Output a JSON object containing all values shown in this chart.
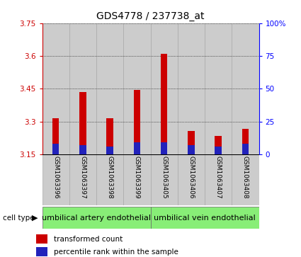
{
  "title": "GDS4778 / 237738_at",
  "samples": [
    "GSM1063396",
    "GSM1063397",
    "GSM1063398",
    "GSM1063399",
    "GSM1063405",
    "GSM1063406",
    "GSM1063407",
    "GSM1063408"
  ],
  "red_values": [
    3.315,
    3.435,
    3.315,
    3.445,
    3.61,
    3.255,
    3.235,
    3.265
  ],
  "blue_percentiles": [
    8,
    7,
    6,
    9,
    9,
    7,
    6,
    8
  ],
  "baseline": 3.15,
  "ylim_left": [
    3.15,
    3.75
  ],
  "yticks_left": [
    3.15,
    3.3,
    3.45,
    3.6,
    3.75
  ],
  "ylim_right": [
    0,
    100
  ],
  "yticks_right": [
    0,
    25,
    50,
    75,
    100
  ],
  "yticklabels_right": [
    "0",
    "25",
    "50",
    "75",
    "100%"
  ],
  "group1_label": "umbilical artery endothelial",
  "group2_label": "umbilical vein endothelial",
  "cell_type_label": "cell type",
  "legend_red": "transformed count",
  "legend_blue": "percentile rank within the sample",
  "red_color": "#cc0000",
  "blue_color": "#2222bb",
  "group_bg_color": "#88ee77",
  "bar_cell_color": "#cccccc",
  "bar_cell_edge": "#aaaaaa",
  "grid_color": "#000000",
  "title_fontsize": 10,
  "tick_fontsize": 7.5,
  "sample_fontsize": 6.5,
  "legend_fontsize": 7.5,
  "group_fontsize": 8
}
